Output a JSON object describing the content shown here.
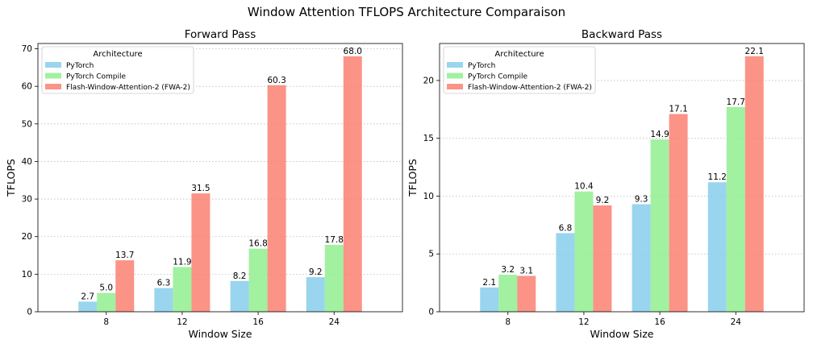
{
  "title": "Window Attention TFLOPS Architecture Comparaison",
  "chart_data": [
    {
      "type": "bar",
      "title": "Forward Pass",
      "xlabel": "Window Size",
      "ylabel": "TFLOPS",
      "categories": [
        "8",
        "12",
        "16",
        "24"
      ],
      "ylim": [
        0,
        71.4
      ],
      "yticks": [
        0,
        10,
        20,
        30,
        40,
        50,
        60,
        70
      ],
      "grid": "y-dotted",
      "legend": {
        "title": "Architecture",
        "placement": "top-left"
      },
      "series": [
        {
          "name": "PyTorch",
          "color": "#87CEEB",
          "values": [
            2.7,
            6.3,
            8.2,
            9.2
          ],
          "labels": [
            "2.7",
            "6.3",
            "8.2",
            "9.2"
          ]
        },
        {
          "name": "PyTorch Compile",
          "color": "#90EE90",
          "values": [
            5.0,
            11.9,
            16.8,
            17.8
          ],
          "labels": [
            "5.0",
            "11.9",
            "16.8",
            "17.8"
          ]
        },
        {
          "name": "Flash-Window-Attention-2 (FWA-2)",
          "color": "#FA8072",
          "values": [
            13.7,
            31.5,
            60.3,
            68.0
          ],
          "labels": [
            "13.7",
            "31.5",
            "60.3",
            "68.0"
          ]
        }
      ]
    },
    {
      "type": "bar",
      "title": "Backward Pass",
      "xlabel": "Window Size",
      "ylabel": "TFLOPS",
      "categories": [
        "8",
        "12",
        "16",
        "24"
      ],
      "ylim": [
        0,
        23.2
      ],
      "yticks": [
        0,
        5,
        10,
        15,
        20
      ],
      "grid": "y-dotted",
      "legend": {
        "title": "Architecture",
        "placement": "top-left"
      },
      "series": [
        {
          "name": "PyTorch",
          "color": "#87CEEB",
          "values": [
            2.1,
            6.8,
            9.3,
            11.2
          ],
          "labels": [
            "2.1",
            "6.8",
            "9.3",
            "11.2"
          ]
        },
        {
          "name": "PyTorch Compile",
          "color": "#90EE90",
          "values": [
            3.2,
            10.4,
            14.9,
            17.7
          ],
          "labels": [
            "3.2",
            "10.4",
            "14.9",
            "17.7"
          ]
        },
        {
          "name": "Flash-Window-Attention-2 (FWA-2)",
          "color": "#FA8072",
          "values": [
            3.1,
            9.2,
            17.1,
            22.1
          ],
          "labels": [
            "3.1",
            "9.2",
            "17.1",
            "22.1"
          ]
        }
      ]
    }
  ]
}
